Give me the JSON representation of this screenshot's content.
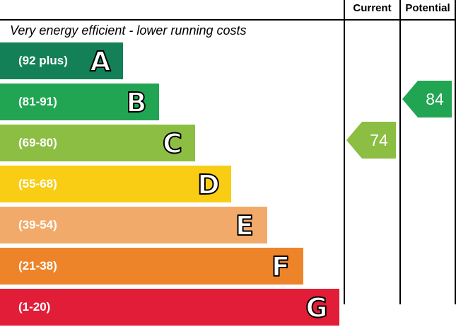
{
  "header": {
    "current_label": "Current",
    "potential_label": "Potential"
  },
  "caption": "Very energy efficient - lower running costs",
  "chart_data": {
    "type": "bar",
    "categories": [
      "A",
      "B",
      "C",
      "D",
      "E",
      "F",
      "G"
    ],
    "ranges": [
      "(92 plus)",
      "(81-91)",
      "(69-80)",
      "(55-68)",
      "(39-54)",
      "(21-38)",
      "(1-20)"
    ],
    "colors": [
      "#138058",
      "#21a552",
      "#8cbe43",
      "#f8cd14",
      "#f2aa6b",
      "#ee8429",
      "#e21d38"
    ],
    "current": {
      "value": 74,
      "band": "C",
      "color": "#8cbe43"
    },
    "potential": {
      "value": 84,
      "band": "B",
      "color": "#21a552"
    }
  }
}
